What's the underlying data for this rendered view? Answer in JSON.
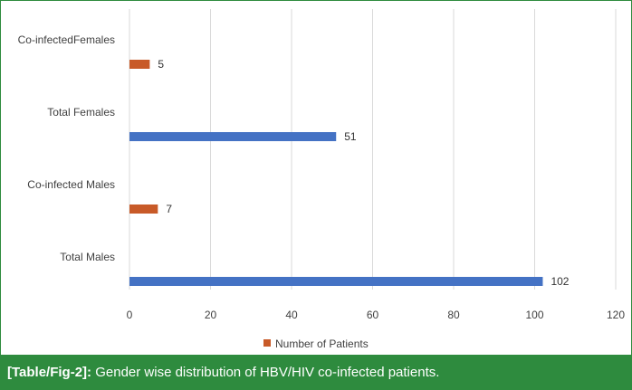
{
  "chart_data": {
    "type": "bar",
    "orientation": "horizontal",
    "categories": [
      "Co-infectedFemales",
      "Total Females",
      "Co-infected Males",
      "Total Males"
    ],
    "series": [
      {
        "name": "Number of Patients",
        "values": [
          5,
          51,
          7,
          102
        ],
        "colors": [
          "#c85a28",
          "#4472c4",
          "#c85a28",
          "#4472c4"
        ]
      }
    ],
    "xlim": [
      0,
      120
    ],
    "xticks": [
      0,
      20,
      40,
      60,
      80,
      100,
      120
    ],
    "grid": true,
    "legend_position": "bottom"
  },
  "caption": {
    "label": "[Table/Fig-2]:",
    "text": "Gender wise distribution of HBV/HIV co-infected patients."
  },
  "colors": {
    "frame": "#2e8b3e",
    "caption_bg": "#2e8b3e",
    "grid": "#d9d9d9"
  }
}
